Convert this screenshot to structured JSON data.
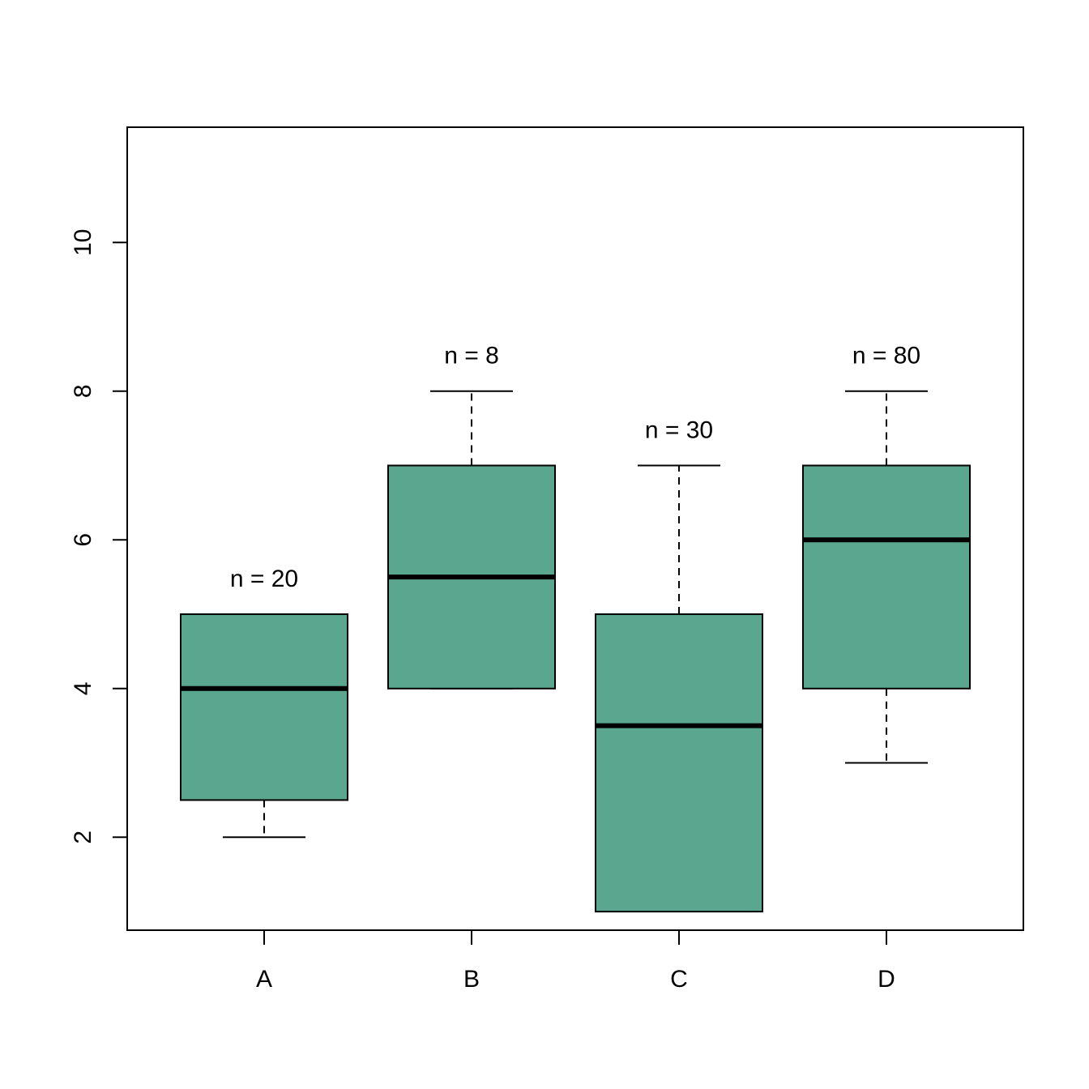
{
  "chart_data": {
    "type": "box",
    "title": "",
    "xlabel": "",
    "ylabel": "",
    "ylim": [
      0.75,
      11.55
    ],
    "yticks": [
      2,
      4,
      6,
      8,
      10
    ],
    "grid": false,
    "box_color": "#5AA68F",
    "categories": [
      "A",
      "B",
      "C",
      "D"
    ],
    "boxes": [
      {
        "category": "A",
        "min": 2,
        "q1": 2.5,
        "median": 4,
        "q3": 5,
        "max": 5,
        "n": 20,
        "n_label": "n = 20"
      },
      {
        "category": "B",
        "min": 4,
        "q1": 4,
        "median": 5.5,
        "q3": 7,
        "max": 8,
        "n": 8,
        "n_label": "n = 8"
      },
      {
        "category": "C",
        "min": 1,
        "q1": 1,
        "median": 3.5,
        "q3": 5,
        "max": 7,
        "n": 30,
        "n_label": "n = 30"
      },
      {
        "category": "D",
        "min": 3,
        "q1": 4,
        "median": 6,
        "q3": 7,
        "max": 8,
        "n": 80,
        "n_label": "n = 80"
      }
    ]
  }
}
